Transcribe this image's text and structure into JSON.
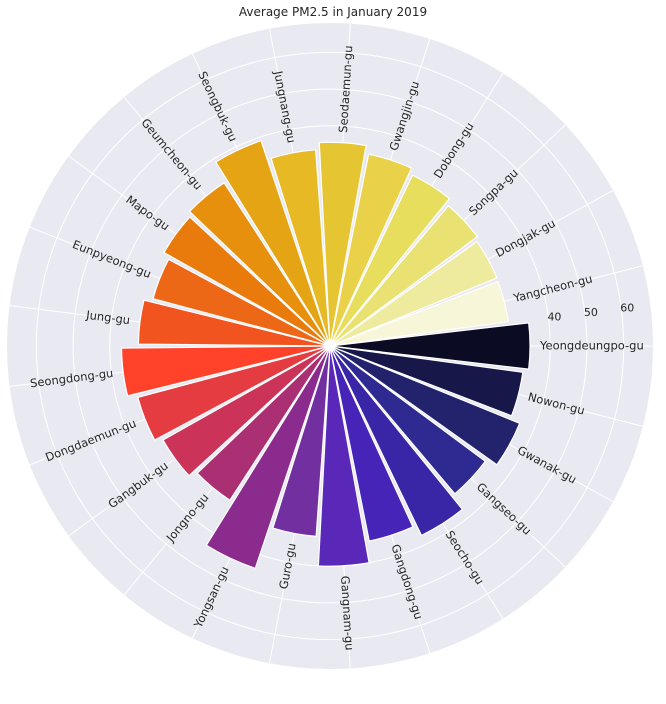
{
  "chart_data": {
    "type": "bar",
    "subtype": "circular-barplot",
    "title": "Average PM2.5 in January 2019",
    "categories": [
      "Yeongdeungpo-gu",
      "Yangcheon-gu",
      "Dongjak-gu",
      "Songpa-gu",
      "Dobong-gu",
      "Gwangjin-gu",
      "Seodaemun-gu",
      "Jungnang-gu",
      "Seongbuk-gu",
      "Geumcheon-gu",
      "Mapo-gu",
      "Eunpyeong-gu",
      "Jung-gu",
      "Seongdong-gu",
      "Dongdaemun-gu",
      "Gangbuk-gu",
      "Jongno-gu",
      "Yongsan-gu",
      "Guro-gu",
      "Gangnam-gu",
      "Gangdong-gu",
      "Seocho-gu",
      "Gangseo-gu",
      "Gwanak-gu",
      "Nowon-gu"
    ],
    "values": [
      34.5,
      29.0,
      29.1,
      30.0,
      31.7,
      33.3,
      35.5,
      33.6,
      39.0,
      33.0,
      31.9,
      29.9,
      32.2,
      36.8,
      34.2,
      32.2,
      30.1,
      43.9,
      32.0,
      40.0,
      34.2,
      37.3,
      32.7,
      35.8,
      33.0
    ],
    "rlim": [
      -20,
      68
    ],
    "rticks": [
      40,
      50,
      60
    ],
    "grid": true,
    "colormap": "CMRmap reversed",
    "colors": [
      "#0b0b23",
      "#f7f6d8",
      "#eeeb9e",
      "#e9e273",
      "#e8de5e",
      "#e9d24a",
      "#e6c532",
      "#e6b925",
      "#e5a414",
      "#e6900d",
      "#e97b0c",
      "#ec6816",
      "#f1541e",
      "#ff4229",
      "#e53c41",
      "#cb3458",
      "#aa3073",
      "#8a2b8d",
      "#712fa0",
      "#5a28b8",
      "#4724b8",
      "#3826a6",
      "#2f2a91",
      "#22226d",
      "#17174a"
    ],
    "background": "#e9e9f1"
  }
}
